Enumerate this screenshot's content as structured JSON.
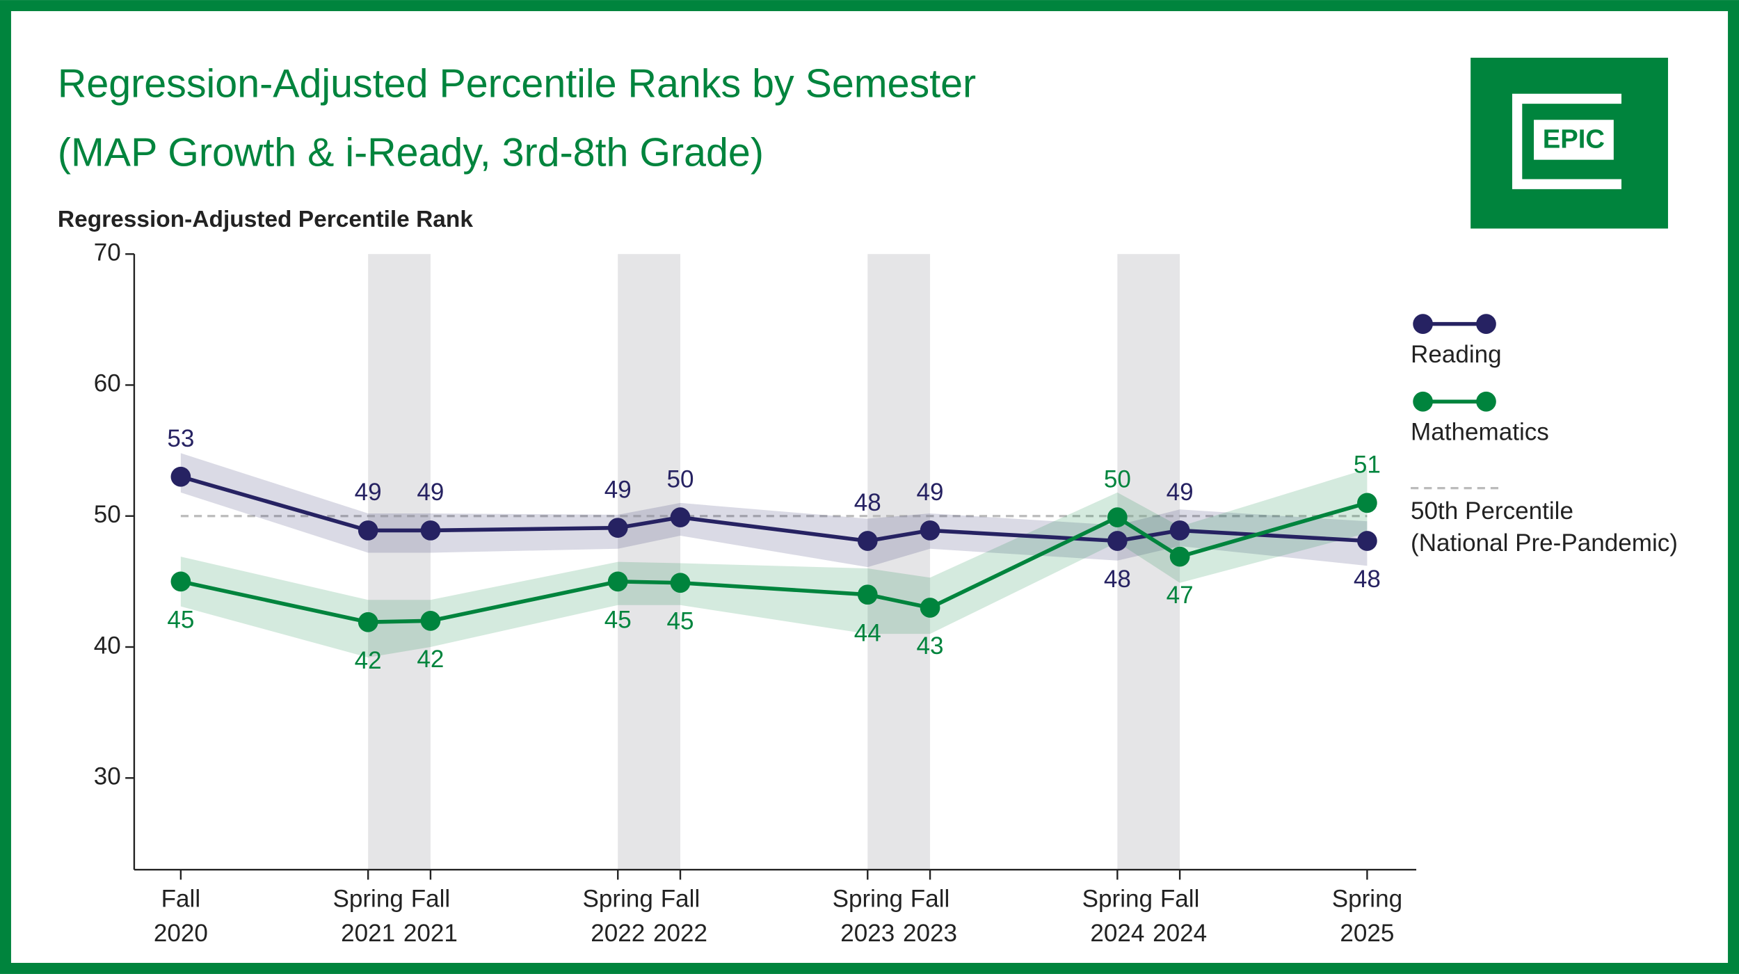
{
  "logo": "EPIC",
  "chart_data": {
    "type": "line",
    "title": "Regression-Adjusted Percentile Ranks by Semester",
    "subtitle": "(MAP Growth & i-Ready, 3rd-8th Grade)",
    "y_label": "Regression-Adjusted Percentile Rank",
    "categories": [
      [
        "Fall",
        "2020"
      ],
      [
        "Spring",
        "2021"
      ],
      [
        "Fall",
        "2021"
      ],
      [
        "Spring",
        "2022"
      ],
      [
        "Fall",
        "2022"
      ],
      [
        "Spring",
        "2023"
      ],
      [
        "Fall",
        "2023"
      ],
      [
        "Spring",
        "2024"
      ],
      [
        "Fall",
        "2024"
      ],
      [
        "Spring",
        "2025"
      ]
    ],
    "series": [
      {
        "name": "Reading",
        "color": "#262262",
        "values": [
          53.0,
          48.9,
          48.9,
          49.1,
          49.9,
          48.1,
          48.9,
          48.1,
          48.9,
          48.1
        ],
        "value_labels": [
          "53",
          "49",
          "49",
          "49",
          "50",
          "48",
          "49",
          "48",
          "49",
          "48"
        ],
        "lower": [
          51.8,
          47.2,
          47.2,
          47.5,
          48.5,
          46.1,
          47.5,
          46.6,
          47.7,
          46.2
        ],
        "upper": [
          54.8,
          50.2,
          50.2,
          50.1,
          51.0,
          49.8,
          50.2,
          49.3,
          50.5,
          49.6
        ]
      },
      {
        "name": "Mathematics",
        "color": "#00843d",
        "values": [
          45.0,
          41.9,
          42.0,
          45.0,
          44.9,
          44.0,
          43.0,
          49.9,
          46.9,
          51.0
        ],
        "value_labels": [
          "45",
          "42",
          "42",
          "45",
          "45",
          "44",
          "43",
          "50",
          "47",
          "51"
        ],
        "lower": [
          43.1,
          39.2,
          40.0,
          43.2,
          43.2,
          41.0,
          41.0,
          48.0,
          44.9,
          48.7
        ],
        "upper": [
          46.9,
          43.6,
          43.6,
          46.5,
          46.4,
          46.0,
          45.3,
          51.8,
          49.2,
          53.6
        ]
      }
    ],
    "reference": {
      "value": 50,
      "label": [
        "50th Percentile",
        "(National Pre-Pandemic)"
      ],
      "color": "#bbbbbb"
    },
    "ylim": [
      23,
      70
    ],
    "yticks": [
      30,
      40,
      50,
      60,
      70
    ],
    "grid": false
  }
}
